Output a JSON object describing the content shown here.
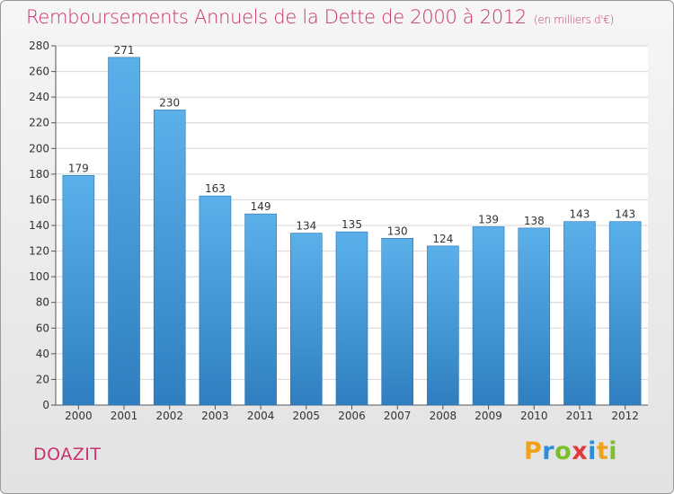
{
  "header": {
    "title": "Remboursements Annuels de la Dette de 2000 à 2012",
    "subtitle": "(en milliers d'€)"
  },
  "footer": {
    "commune": "DOAZIT",
    "logo_text": "Proxiti"
  },
  "colors": {
    "bar_top": "#5cb0ea",
    "bar_bottom": "#2f7fc0",
    "title": "#c8326e",
    "grid": "#d4d4d4"
  },
  "chart_data": {
    "type": "bar",
    "title": "Remboursements Annuels de la Dette de 2000 à 2012",
    "subtitle": "(en milliers d'€)",
    "categories": [
      "2000",
      "2001",
      "2002",
      "2003",
      "2004",
      "2005",
      "2006",
      "2007",
      "2008",
      "2009",
      "2010",
      "2011",
      "2012"
    ],
    "values": [
      179,
      271,
      230,
      163,
      149,
      134,
      135,
      130,
      124,
      139,
      138,
      143,
      143
    ],
    "ylim": [
      0,
      280
    ],
    "yticks": [
      0,
      20,
      40,
      60,
      80,
      100,
      120,
      140,
      160,
      180,
      200,
      220,
      240,
      260,
      280
    ],
    "grid": true,
    "data_labels": true
  }
}
